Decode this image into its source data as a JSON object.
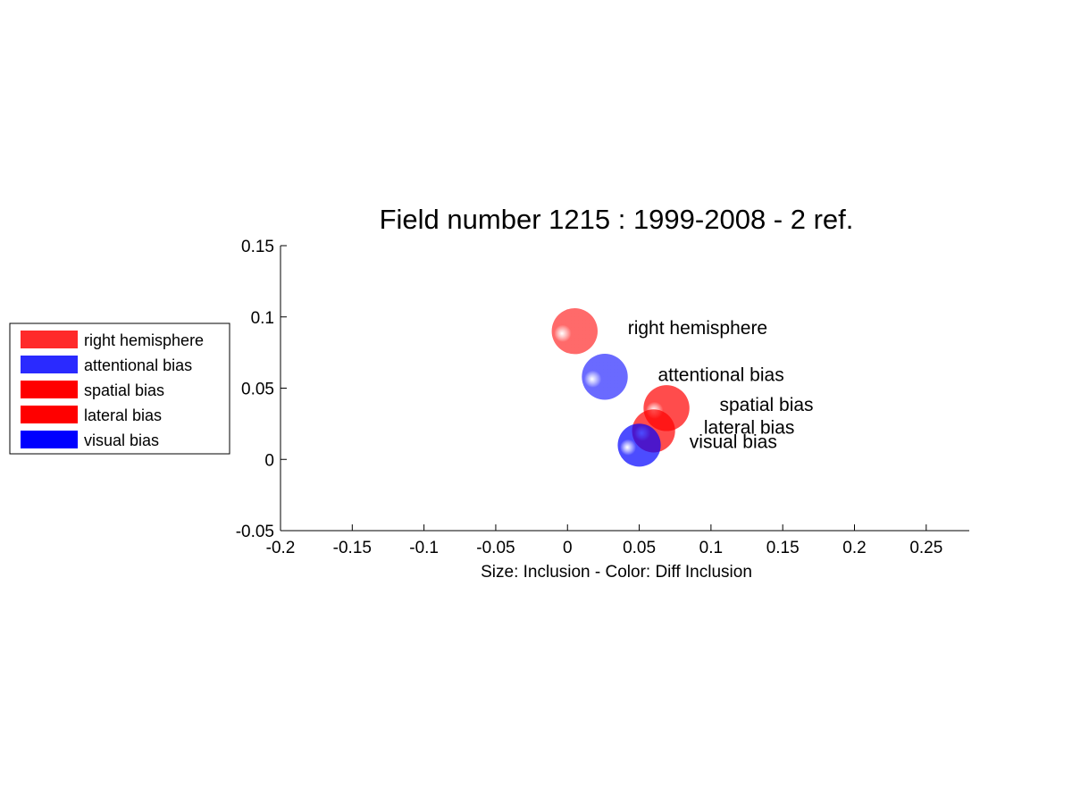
{
  "chart_data": {
    "type": "scatter",
    "title": "Field number 1215 : 1999-2008  - 2 ref.",
    "xlabel": "Size: Inclusion - Color: Diff Inclusion",
    "ylabel": "",
    "xlim": [
      -0.2,
      0.28
    ],
    "ylim": [
      -0.05,
      0.15
    ],
    "xticks": [
      -0.2,
      -0.15,
      -0.1,
      -0.05,
      0,
      0.05,
      0.1,
      0.15,
      0.2,
      0.25
    ],
    "xtick_labels": [
      "-0.2",
      "-0.15",
      "-0.1",
      "-0.05",
      "0",
      "0.05",
      "0.1",
      "0.15",
      "0.2",
      "0.25"
    ],
    "yticks": [
      -0.05,
      0,
      0.05,
      0.1,
      0.15
    ],
    "ytick_labels": [
      "-0.05",
      "0",
      "0.05",
      "0.1",
      "0.15"
    ],
    "grid": false,
    "legend_position": "left",
    "points": [
      {
        "name": "right hemisphere",
        "x": 0.005,
        "y": 0.09,
        "size": 0.032,
        "color": "#ff2a2a",
        "label_x": 0.042,
        "label_y": 0.088
      },
      {
        "name": "attentional bias",
        "x": 0.026,
        "y": 0.058,
        "size": 0.032,
        "color": "#2a2aff",
        "label_x": 0.063,
        "label_y": 0.055
      },
      {
        "name": "spatial bias",
        "x": 0.069,
        "y": 0.036,
        "size": 0.032,
        "color": "#ff0000",
        "label_x": 0.106,
        "label_y": 0.034
      },
      {
        "name": "lateral bias",
        "x": 0.06,
        "y": 0.02,
        "size": 0.03,
        "color": "#ff0000",
        "label_x": 0.095,
        "label_y": 0.018
      },
      {
        "name": "visual bias",
        "x": 0.05,
        "y": 0.01,
        "size": 0.03,
        "color": "#0000ff",
        "label_x": 0.085,
        "label_y": 0.008
      }
    ]
  }
}
